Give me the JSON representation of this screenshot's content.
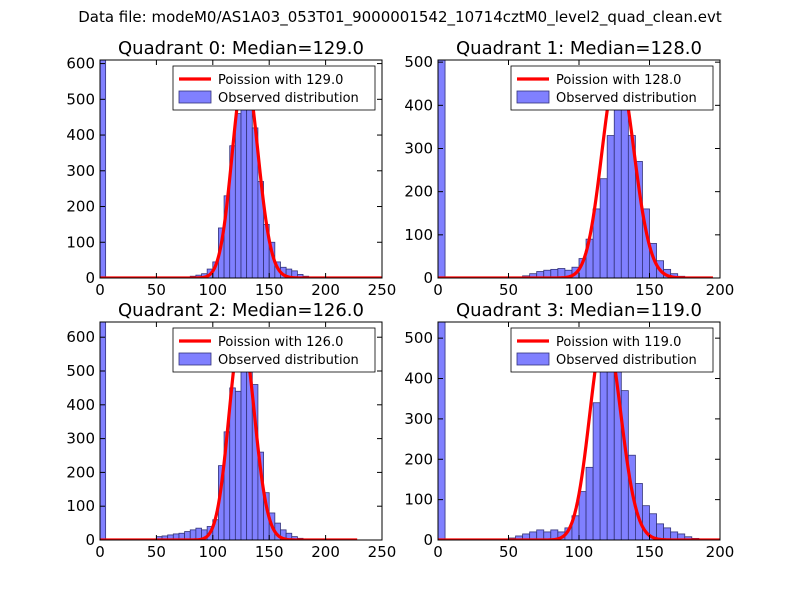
{
  "figure": {
    "title": "Data file: modeM0/AS1A03_053T01_9000001542_10714cztM0_level2_quad_clean.evt"
  },
  "colors": {
    "bar_fill": "#8080ff",
    "bar_edge": "#33337a",
    "fit_line": "#ff0000",
    "axes": "#000000"
  },
  "chart_data": [
    {
      "type": "bar",
      "title": "Quadrant 0: Median=129.0",
      "xlim": [
        0,
        250
      ],
      "ylim": [
        0,
        610
      ],
      "xticks": [
        "0",
        "50",
        "100",
        "150",
        "200",
        "250"
      ],
      "xtick_values": [
        0,
        50,
        100,
        150,
        200,
        250
      ],
      "yticks": [
        "0",
        "100",
        "200",
        "300",
        "400",
        "500",
        "600"
      ],
      "ytick_values": [
        0,
        100,
        200,
        300,
        400,
        500,
        600
      ],
      "legend": {
        "position": "top-right",
        "entries": [
          "Poission with 129.0",
          "Observed distribution"
        ]
      },
      "bin_width": 5,
      "bins": [
        {
          "x": 0,
          "y": 610
        },
        {
          "x": 75,
          "y": 2
        },
        {
          "x": 80,
          "y": 5
        },
        {
          "x": 85,
          "y": 8
        },
        {
          "x": 90,
          "y": 12
        },
        {
          "x": 95,
          "y": 25
        },
        {
          "x": 100,
          "y": 45
        },
        {
          "x": 105,
          "y": 140
        },
        {
          "x": 110,
          "y": 230
        },
        {
          "x": 115,
          "y": 370
        },
        {
          "x": 120,
          "y": 460
        },
        {
          "x": 125,
          "y": 580
        },
        {
          "x": 130,
          "y": 500
        },
        {
          "x": 135,
          "y": 420
        },
        {
          "x": 140,
          "y": 270
        },
        {
          "x": 145,
          "y": 150
        },
        {
          "x": 150,
          "y": 100
        },
        {
          "x": 155,
          "y": 45
        },
        {
          "x": 160,
          "y": 30
        },
        {
          "x": 165,
          "y": 25
        },
        {
          "x": 170,
          "y": 20
        },
        {
          "x": 175,
          "y": 10
        },
        {
          "x": 180,
          "y": 5
        },
        {
          "x": 185,
          "y": 2
        },
        {
          "x": 200,
          "y": 1
        }
      ],
      "fit": {
        "name": "Poission with 129.0",
        "mean": 129.0,
        "peak": 580,
        "x_range": [
          0,
          250
        ]
      }
    },
    {
      "type": "bar",
      "title": "Quadrant 1: Median=128.0",
      "xlim": [
        0,
        200
      ],
      "ylim": [
        0,
        505
      ],
      "xticks": [
        "0",
        "50",
        "100",
        "150",
        "200"
      ],
      "xtick_values": [
        0,
        50,
        100,
        150,
        200
      ],
      "yticks": [
        "0",
        "100",
        "200",
        "300",
        "400",
        "500"
      ],
      "ytick_values": [
        0,
        100,
        200,
        300,
        400,
        500
      ],
      "legend": {
        "position": "top-right",
        "entries": [
          "Poission with 128.0",
          "Observed distribution"
        ]
      },
      "bin_width": 5,
      "bins": [
        {
          "x": 0,
          "y": 505
        },
        {
          "x": 60,
          "y": 5
        },
        {
          "x": 65,
          "y": 10
        },
        {
          "x": 70,
          "y": 15
        },
        {
          "x": 75,
          "y": 18
        },
        {
          "x": 80,
          "y": 20
        },
        {
          "x": 85,
          "y": 22
        },
        {
          "x": 90,
          "y": 18
        },
        {
          "x": 95,
          "y": 25
        },
        {
          "x": 100,
          "y": 45
        },
        {
          "x": 105,
          "y": 90
        },
        {
          "x": 110,
          "y": 160
        },
        {
          "x": 115,
          "y": 230
        },
        {
          "x": 120,
          "y": 330
        },
        {
          "x": 125,
          "y": 420
        },
        {
          "x": 130,
          "y": 470
        },
        {
          "x": 135,
          "y": 330
        },
        {
          "x": 140,
          "y": 270
        },
        {
          "x": 145,
          "y": 160
        },
        {
          "x": 150,
          "y": 80
        },
        {
          "x": 155,
          "y": 40
        },
        {
          "x": 160,
          "y": 20
        },
        {
          "x": 165,
          "y": 10
        },
        {
          "x": 170,
          "y": 4
        }
      ],
      "fit": {
        "name": "Poission with 128.0",
        "mean": 128.0,
        "peak": 485,
        "x_range": [
          0,
          195
        ]
      }
    },
    {
      "type": "bar",
      "title": "Quadrant 2: Median=126.0",
      "xlim": [
        0,
        250
      ],
      "ylim": [
        0,
        645
      ],
      "xticks": [
        "0",
        "50",
        "100",
        "150",
        "200",
        "250"
      ],
      "xtick_values": [
        0,
        50,
        100,
        150,
        200,
        250
      ],
      "yticks": [
        "0",
        "100",
        "200",
        "300",
        "400",
        "500",
        "600"
      ],
      "ytick_values": [
        0,
        100,
        200,
        300,
        400,
        500,
        600
      ],
      "legend": {
        "position": "top-right",
        "entries": [
          "Poission with 126.0",
          "Observed distribution"
        ]
      },
      "bin_width": 5,
      "bins": [
        {
          "x": 0,
          "y": 645
        },
        {
          "x": 50,
          "y": 10
        },
        {
          "x": 55,
          "y": 12
        },
        {
          "x": 60,
          "y": 15
        },
        {
          "x": 65,
          "y": 18
        },
        {
          "x": 70,
          "y": 20
        },
        {
          "x": 75,
          "y": 25
        },
        {
          "x": 80,
          "y": 30
        },
        {
          "x": 85,
          "y": 35
        },
        {
          "x": 90,
          "y": 30
        },
        {
          "x": 95,
          "y": 40
        },
        {
          "x": 100,
          "y": 60
        },
        {
          "x": 105,
          "y": 220
        },
        {
          "x": 110,
          "y": 320
        },
        {
          "x": 115,
          "y": 450
        },
        {
          "x": 120,
          "y": 440
        },
        {
          "x": 125,
          "y": 610
        },
        {
          "x": 130,
          "y": 510
        },
        {
          "x": 135,
          "y": 460
        },
        {
          "x": 140,
          "y": 260
        },
        {
          "x": 145,
          "y": 140
        },
        {
          "x": 150,
          "y": 80
        },
        {
          "x": 155,
          "y": 50
        },
        {
          "x": 160,
          "y": 30
        },
        {
          "x": 165,
          "y": 20
        },
        {
          "x": 170,
          "y": 10
        },
        {
          "x": 175,
          "y": 5
        }
      ],
      "fit": {
        "name": "Poission with 126.0",
        "mean": 126.0,
        "peak": 615,
        "x_range": [
          0,
          228
        ]
      }
    },
    {
      "type": "bar",
      "title": "Quadrant 3: Median=119.0",
      "xlim": [
        0,
        200
      ],
      "ylim": [
        0,
        540
      ],
      "xticks": [
        "0",
        "50",
        "100",
        "150",
        "200"
      ],
      "xtick_values": [
        0,
        50,
        100,
        150,
        200
      ],
      "yticks": [
        "0",
        "100",
        "200",
        "300",
        "400",
        "500"
      ],
      "ytick_values": [
        0,
        100,
        200,
        300,
        400,
        500
      ],
      "legend": {
        "position": "top-right",
        "entries": [
          "Poission with 119.0",
          "Observed distribution"
        ]
      },
      "bin_width": 5,
      "bins": [
        {
          "x": 0,
          "y": 540
        },
        {
          "x": 50,
          "y": 5
        },
        {
          "x": 55,
          "y": 10
        },
        {
          "x": 60,
          "y": 15
        },
        {
          "x": 65,
          "y": 20
        },
        {
          "x": 70,
          "y": 25
        },
        {
          "x": 75,
          "y": 20
        },
        {
          "x": 80,
          "y": 25
        },
        {
          "x": 85,
          "y": 20
        },
        {
          "x": 90,
          "y": 30
        },
        {
          "x": 95,
          "y": 60
        },
        {
          "x": 100,
          "y": 120
        },
        {
          "x": 105,
          "y": 180
        },
        {
          "x": 110,
          "y": 340
        },
        {
          "x": 115,
          "y": 440
        },
        {
          "x": 120,
          "y": 505
        },
        {
          "x": 125,
          "y": 430
        },
        {
          "x": 130,
          "y": 370
        },
        {
          "x": 135,
          "y": 210
        },
        {
          "x": 140,
          "y": 140
        },
        {
          "x": 145,
          "y": 85
        },
        {
          "x": 150,
          "y": 65
        },
        {
          "x": 155,
          "y": 40
        },
        {
          "x": 160,
          "y": 30
        },
        {
          "x": 165,
          "y": 20
        },
        {
          "x": 170,
          "y": 15
        },
        {
          "x": 175,
          "y": 8
        },
        {
          "x": 180,
          "y": 4
        }
      ],
      "fit": {
        "name": "Poission with 119.0",
        "mean": 119.0,
        "peak": 520,
        "x_range": [
          0,
          200
        ]
      }
    }
  ]
}
